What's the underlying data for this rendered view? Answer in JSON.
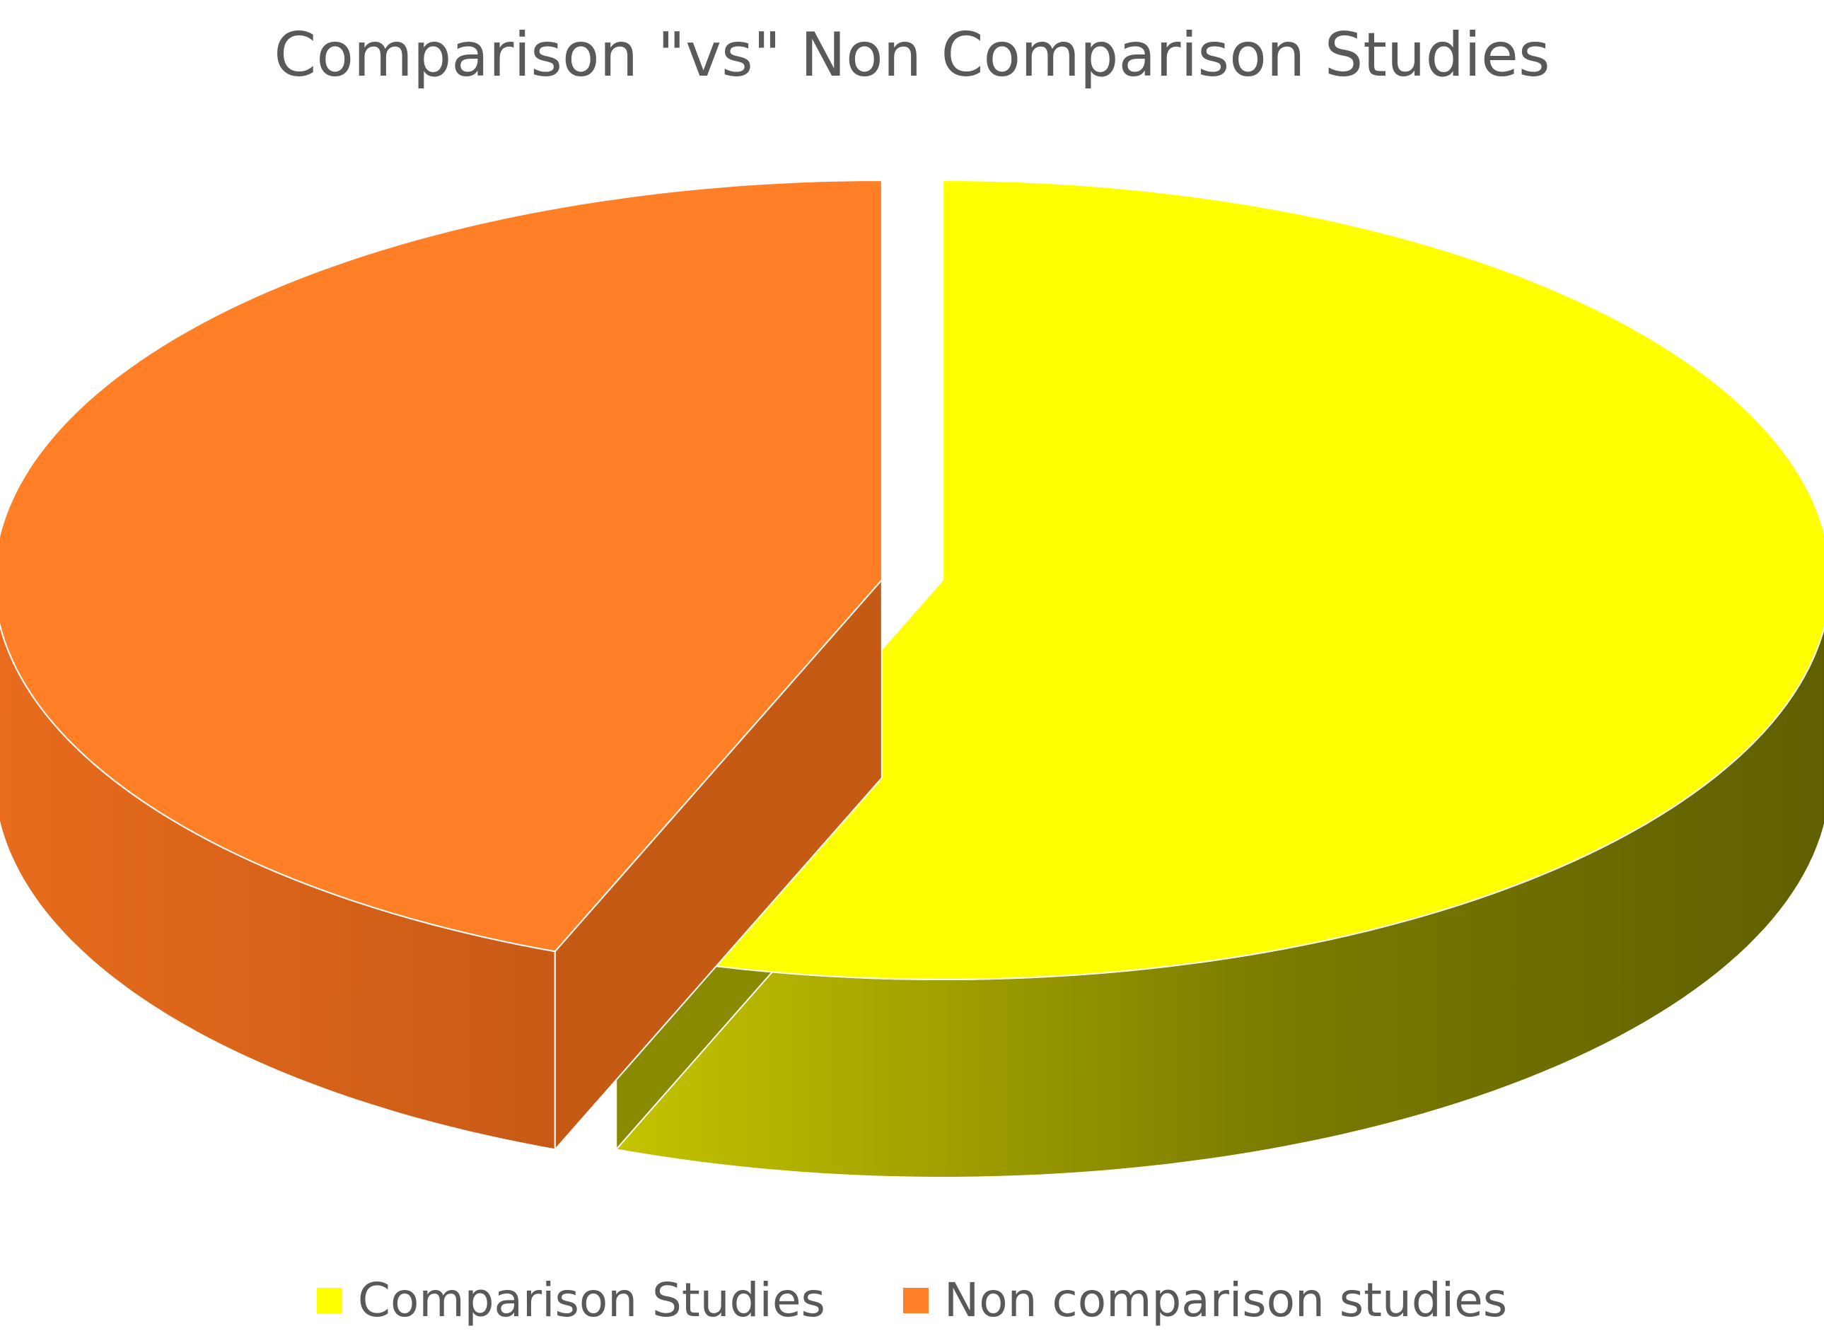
{
  "chart_data": {
    "type": "pie",
    "title": "Comparison \"vs\" Non Comparison Studies",
    "three_d": true,
    "exploded": true,
    "legend_position": "bottom",
    "slices": [
      {
        "label": "Comparison Studies",
        "value": 56,
        "color": "#ffff00"
      },
      {
        "label": "Non comparison studies",
        "value": 44,
        "color": "#ff7f27"
      }
    ]
  }
}
